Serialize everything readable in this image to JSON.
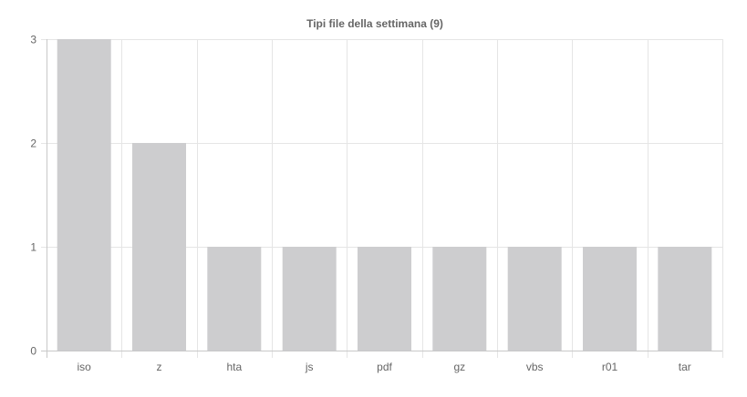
{
  "chart_data": {
    "type": "bar",
    "title": "Tipi file della settimana (9)",
    "categories": [
      "iso",
      "z",
      "hta",
      "js",
      "pdf",
      "gz",
      "vbs",
      "r01",
      "tar"
    ],
    "values": [
      3,
      2,
      1,
      1,
      1,
      1,
      1,
      1,
      1
    ],
    "xlabel": "",
    "ylabel": "",
    "ylim": [
      0,
      3
    ],
    "yticks": [
      "0",
      "1",
      "2",
      "3"
    ],
    "grid": true,
    "legend": "none",
    "colors": {
      "bar": "#cdcdcf",
      "grid": "#e5e5e5",
      "text": "#666666"
    }
  }
}
